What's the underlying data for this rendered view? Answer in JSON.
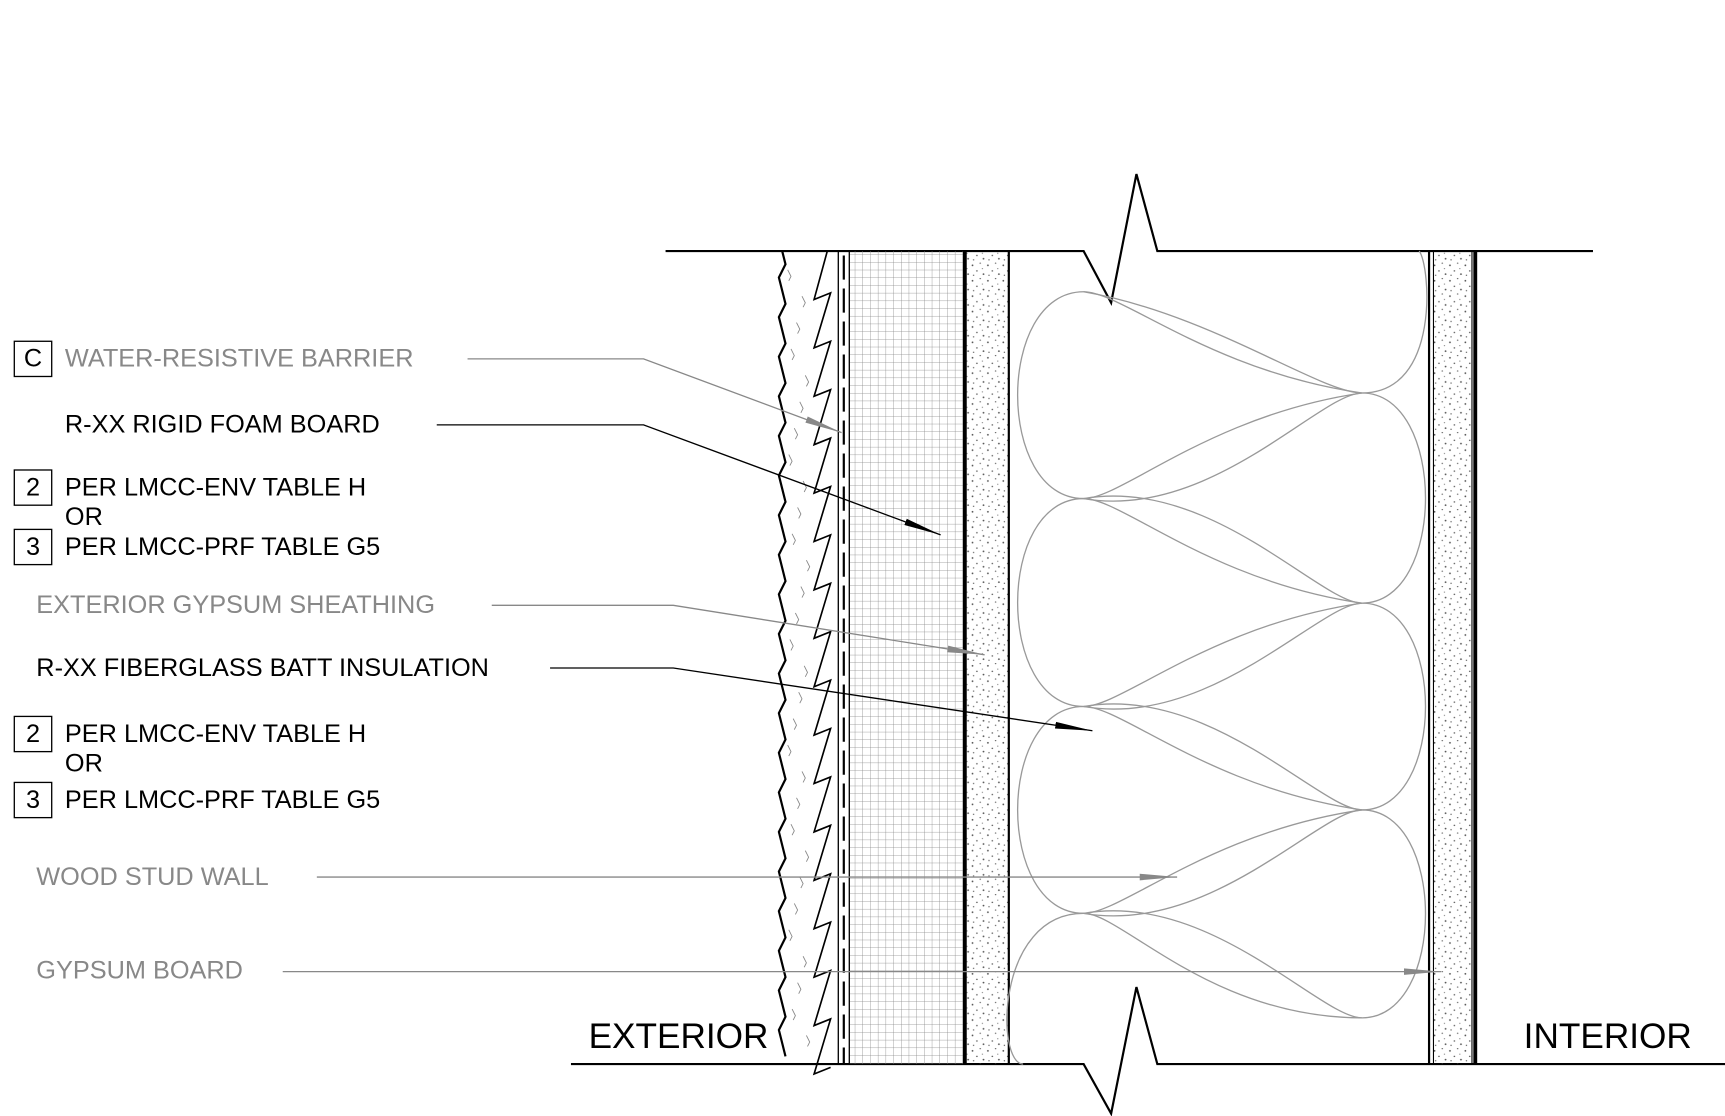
{
  "labels": [
    {
      "tag": "C",
      "text": "WATER-RESISTIVE BARRIER"
    },
    {
      "text": "R-XX RIGID FOAM BOARD"
    },
    {
      "tag": "2",
      "text": "PER LMCC-ENV TABLE H"
    },
    {
      "text": "OR"
    },
    {
      "tag": "3",
      "text": "PER LMCC-PRF TABLE G5"
    },
    {
      "text": "EXTERIOR GYPSUM SHEATHING"
    },
    {
      "text": "R-XX FIBERGLASS BATT INSULATION"
    },
    {
      "tag": "2",
      "text": "PER LMCC-ENV TABLE H"
    },
    {
      "text": "OR"
    },
    {
      "tag": "3",
      "text": "PER LMCC-PRF TABLE G5"
    },
    {
      "text": "WOOD STUD WALL"
    },
    {
      "text": "GYPSUM BOARD"
    }
  ],
  "sides": {
    "exterior": "EXTERIOR",
    "interior": "INTERIOR"
  }
}
